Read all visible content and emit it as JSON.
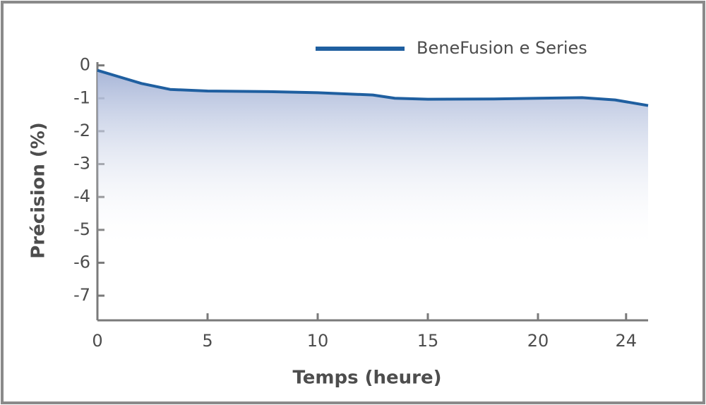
{
  "chart_data": {
    "type": "area",
    "xlabel": "Temps (heure)",
    "ylabel": "Précision (%)",
    "x": [
      0,
      1,
      2,
      3.3,
      5,
      8,
      10,
      12.5,
      13.5,
      15,
      18,
      20,
      22,
      23.5,
      25
    ],
    "series": [
      {
        "name": "BeneFusion e Series",
        "color": "#1f5fa0",
        "values": [
          -0.15,
          -0.35,
          -0.55,
          -0.73,
          -0.78,
          -0.8,
          -0.83,
          -0.9,
          -1.0,
          -1.03,
          -1.02,
          -1.0,
          -0.98,
          -1.05,
          -1.22
        ]
      }
    ],
    "xlim": [
      0,
      25
    ],
    "xticks": [
      0,
      5,
      10,
      15,
      20,
      24
    ],
    "ylim": [
      -7.75,
      0.1
    ],
    "yticks": [
      0,
      -1,
      -2,
      -3,
      -4,
      -5,
      -6,
      -7
    ],
    "grid": false,
    "legend": "top-right"
  }
}
